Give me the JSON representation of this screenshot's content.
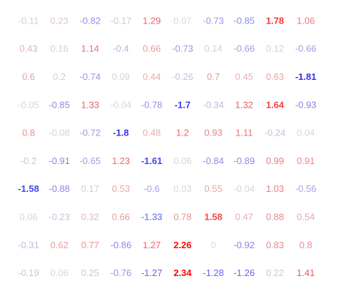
{
  "chart_data": {
    "type": "table",
    "title": "",
    "xlabel": "",
    "ylabel": "",
    "grid": false,
    "color_scale": {
      "negative": "#0000ff",
      "neutral": "#d9d9d9",
      "positive": "#ff0000",
      "max_abs": 2.34
    },
    "rows": [
      [
        "-0.11",
        "0.23",
        "-0.82",
        "-0.17",
        "1.29",
        "0.07",
        "-0.73",
        "-0.85",
        "1.78",
        "1.06"
      ],
      [
        "0.43",
        "0.16",
        "1.14",
        "-0.4",
        "0.66",
        "-0.73",
        "0.14",
        "-0.66",
        "0.12",
        "-0.66"
      ],
      [
        "0.6",
        "0.2",
        "-0.74",
        "0.09",
        "0.44",
        "-0.26",
        "0.7",
        "0.45",
        "0.63",
        "-1.81"
      ],
      [
        "-0.05",
        "-0.85",
        "1.33",
        "-0.04",
        "-0.78",
        "-1.7",
        "-0.34",
        "1.32",
        "1.64",
        "-0.93"
      ],
      [
        "0.8",
        "-0.08",
        "-0.72",
        "-1.8",
        "0.48",
        "1.2",
        "0.93",
        "1.11",
        "-0.24",
        "0.04"
      ],
      [
        "-0.2",
        "-0.91",
        "-0.65",
        "1.23",
        "-1.61",
        "0.06",
        "-0.84",
        "-0.89",
        "0.99",
        "0.91"
      ],
      [
        "-1.58",
        "-0.88",
        "0.17",
        "0.53",
        "-0.6",
        "0.03",
        "0.55",
        "-0.04",
        "1.03",
        "-0.56"
      ],
      [
        "0.06",
        "-0.23",
        "0.32",
        "0.66",
        "-1.33",
        "0.78",
        "1.58",
        "0.47",
        "0.88",
        "0.54"
      ],
      [
        "-0.31",
        "0.62",
        "0.77",
        "-0.86",
        "1.27",
        "2.26",
        "0",
        "-0.92",
        "0.83",
        "0.8"
      ],
      [
        "-0.19",
        "0.06",
        "0.25",
        "-0.76",
        "-1.27",
        "2.34",
        "-1.28",
        "-1.26",
        "0.22",
        "1.41"
      ]
    ]
  }
}
